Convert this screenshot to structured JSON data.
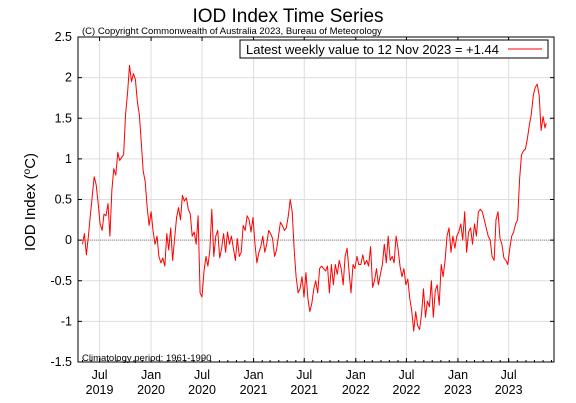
{
  "title": "IOD Index Time Series",
  "copyright": "(C) Copyright Commonwealth of Australia 2023, Bureau of Meteorology",
  "chart_data": {
    "type": "line",
    "title": "IOD Index Time Series",
    "ylabel": "IOD Index (",
    "ylabel_unit": "o",
    "ylabel_tail": "C)",
    "xlabel": "",
    "ylim": [
      -1.5,
      2.5
    ],
    "xlim": [
      "2019-04-15",
      "2023-12-10"
    ],
    "grid": true,
    "zero_line": true,
    "line_color": "#ff0000",
    "grid_color": "#dddddd",
    "legend_position": "top-right",
    "legend_label": "Latest weekly value to 12 Nov 2023 = +1.44",
    "note": "Climatology period: 1961-1990",
    "yticks": [
      -1.5,
      -1,
      -0.5,
      0,
      0.5,
      1,
      1.5,
      2,
      2.5
    ],
    "ytick_labels": [
      "-1.5",
      "-1",
      "-0.5",
      "0",
      "0.5",
      "1",
      "1.5",
      "2",
      "2.5"
    ],
    "xticks": [
      {
        "date": "2019-07-01",
        "line1": "Jul",
        "line2": "2019"
      },
      {
        "date": "2020-01-01",
        "line1": "Jan",
        "line2": "2020"
      },
      {
        "date": "2020-07-01",
        "line1": "Jul",
        "line2": "2020"
      },
      {
        "date": "2021-01-01",
        "line1": "Jan",
        "line2": "2021"
      },
      {
        "date": "2021-07-01",
        "line1": "Jul",
        "line2": "2021"
      },
      {
        "date": "2022-01-01",
        "line1": "Jan",
        "line2": "2022"
      },
      {
        "date": "2022-07-01",
        "line1": "Jul",
        "line2": "2022"
      },
      {
        "date": "2023-01-01",
        "line1": "Jan",
        "line2": "2023"
      },
      {
        "date": "2023-07-01",
        "line1": "Jul",
        "line2": "2023"
      }
    ],
    "series": [
      {
        "points": [
          [
            "2019-05-01",
            -0.05
          ],
          [
            "2019-05-08",
            0.08
          ],
          [
            "2019-05-15",
            -0.18
          ],
          [
            "2019-05-22",
            0.05
          ],
          [
            "2019-05-29",
            0.3
          ],
          [
            "2019-06-05",
            0.55
          ],
          [
            "2019-06-12",
            0.78
          ],
          [
            "2019-06-19",
            0.68
          ],
          [
            "2019-06-26",
            0.45
          ],
          [
            "2019-07-03",
            0.2
          ],
          [
            "2019-07-10",
            0.12
          ],
          [
            "2019-07-17",
            0.32
          ],
          [
            "2019-07-24",
            0.3
          ],
          [
            "2019-07-31",
            0.45
          ],
          [
            "2019-08-07",
            0.05
          ],
          [
            "2019-08-14",
            0.62
          ],
          [
            "2019-08-21",
            0.88
          ],
          [
            "2019-08-28",
            0.8
          ],
          [
            "2019-09-04",
            1.08
          ],
          [
            "2019-09-11",
            0.98
          ],
          [
            "2019-09-18",
            1.02
          ],
          [
            "2019-09-25",
            1.05
          ],
          [
            "2019-10-02",
            1.55
          ],
          [
            "2019-10-09",
            1.82
          ],
          [
            "2019-10-16",
            2.15
          ],
          [
            "2019-10-23",
            1.95
          ],
          [
            "2019-10-30",
            2.05
          ],
          [
            "2019-11-06",
            1.98
          ],
          [
            "2019-11-13",
            1.7
          ],
          [
            "2019-11-20",
            1.55
          ],
          [
            "2019-11-27",
            1.2
          ],
          [
            "2019-12-04",
            0.85
          ],
          [
            "2019-12-11",
            0.72
          ],
          [
            "2019-12-18",
            0.4
          ],
          [
            "2019-12-25",
            0.18
          ],
          [
            "2020-01-01",
            0.35
          ],
          [
            "2020-01-08",
            0.12
          ],
          [
            "2020-01-15",
            -0.05
          ],
          [
            "2020-01-22",
            0.05
          ],
          [
            "2020-01-29",
            -0.2
          ],
          [
            "2020-02-05",
            -0.28
          ],
          [
            "2020-02-12",
            -0.22
          ],
          [
            "2020-02-19",
            -0.32
          ],
          [
            "2020-02-26",
            0.08
          ],
          [
            "2020-03-04",
            -0.12
          ],
          [
            "2020-03-11",
            0.15
          ],
          [
            "2020-03-18",
            -0.25
          ],
          [
            "2020-03-25",
            0.02
          ],
          [
            "2020-04-01",
            0.28
          ],
          [
            "2020-04-08",
            0.4
          ],
          [
            "2020-04-15",
            0.25
          ],
          [
            "2020-04-22",
            0.55
          ],
          [
            "2020-04-29",
            0.48
          ],
          [
            "2020-05-06",
            0.52
          ],
          [
            "2020-05-13",
            0.38
          ],
          [
            "2020-05-20",
            0.32
          ],
          [
            "2020-05-27",
            0.05
          ],
          [
            "2020-06-03",
            0.1
          ],
          [
            "2020-06-10",
            -0.05
          ],
          [
            "2020-06-17",
            0.3
          ],
          [
            "2020-06-24",
            -0.65
          ],
          [
            "2020-07-01",
            -0.7
          ],
          [
            "2020-07-08",
            -0.38
          ],
          [
            "2020-07-15",
            -0.2
          ],
          [
            "2020-07-22",
            -0.32
          ],
          [
            "2020-07-29",
            -0.12
          ],
          [
            "2020-08-05",
            0.38
          ],
          [
            "2020-08-12",
            -0.2
          ],
          [
            "2020-08-19",
            0.05
          ],
          [
            "2020-08-26",
            0.12
          ],
          [
            "2020-09-02",
            -0.22
          ],
          [
            "2020-09-09",
            -0.1
          ],
          [
            "2020-09-16",
            0.08
          ],
          [
            "2020-09-23",
            -0.15
          ],
          [
            "2020-09-30",
            0.1
          ],
          [
            "2020-10-07",
            -0.05
          ],
          [
            "2020-10-14",
            0.05
          ],
          [
            "2020-10-21",
            -0.1
          ],
          [
            "2020-10-28",
            -0.25
          ],
          [
            "2020-11-04",
            0.02
          ],
          [
            "2020-11-11",
            -0.2
          ],
          [
            "2020-11-18",
            -0.15
          ],
          [
            "2020-11-25",
            0.18
          ],
          [
            "2020-12-02",
            0.12
          ],
          [
            "2020-12-09",
            0.3
          ],
          [
            "2020-12-16",
            0.25
          ],
          [
            "2020-12-23",
            0.1
          ],
          [
            "2020-12-30",
            0.28
          ],
          [
            "2021-01-06",
            -0.05
          ],
          [
            "2021-01-13",
            -0.28
          ],
          [
            "2021-01-20",
            -0.15
          ],
          [
            "2021-01-27",
            -0.08
          ],
          [
            "2021-02-03",
            0.05
          ],
          [
            "2021-02-10",
            -0.15
          ],
          [
            "2021-02-17",
            -0.05
          ],
          [
            "2021-02-24",
            0.12
          ],
          [
            "2021-03-03",
            0.08
          ],
          [
            "2021-03-10",
            0.02
          ],
          [
            "2021-03-17",
            -0.2
          ],
          [
            "2021-03-24",
            -0.12
          ],
          [
            "2021-03-31",
            0.05
          ],
          [
            "2021-04-07",
            0.22
          ],
          [
            "2021-04-14",
            0.18
          ],
          [
            "2021-04-21",
            0.12
          ],
          [
            "2021-04-28",
            0.15
          ],
          [
            "2021-05-05",
            0.3
          ],
          [
            "2021-05-12",
            0.5
          ],
          [
            "2021-05-19",
            0.35
          ],
          [
            "2021-05-26",
            -0.12
          ],
          [
            "2021-06-02",
            -0.45
          ],
          [
            "2021-06-09",
            -0.65
          ],
          [
            "2021-06-16",
            -0.6
          ],
          [
            "2021-06-23",
            -0.45
          ],
          [
            "2021-06-30",
            -0.7
          ],
          [
            "2021-07-07",
            -0.4
          ],
          [
            "2021-07-14",
            -0.72
          ],
          [
            "2021-07-21",
            -0.88
          ],
          [
            "2021-07-28",
            -0.78
          ],
          [
            "2021-08-04",
            -0.6
          ],
          [
            "2021-08-11",
            -0.5
          ],
          [
            "2021-08-18",
            -0.65
          ],
          [
            "2021-08-25",
            -0.35
          ],
          [
            "2021-09-01",
            -0.32
          ],
          [
            "2021-09-08",
            -0.35
          ],
          [
            "2021-09-15",
            -0.38
          ],
          [
            "2021-09-22",
            -0.32
          ],
          [
            "2021-09-29",
            -0.65
          ],
          [
            "2021-10-06",
            -0.3
          ],
          [
            "2021-10-13",
            -0.55
          ],
          [
            "2021-10-20",
            -0.3
          ],
          [
            "2021-10-27",
            -0.42
          ],
          [
            "2021-11-03",
            -0.25
          ],
          [
            "2021-11-10",
            -0.35
          ],
          [
            "2021-11-17",
            -0.55
          ],
          [
            "2021-11-24",
            -0.2
          ],
          [
            "2021-12-01",
            -0.1
          ],
          [
            "2021-12-08",
            -0.38
          ],
          [
            "2021-12-15",
            -0.65
          ],
          [
            "2021-12-22",
            -0.3
          ],
          [
            "2021-12-29",
            -0.35
          ],
          [
            "2022-01-05",
            -0.2
          ],
          [
            "2022-01-12",
            -0.3
          ],
          [
            "2022-01-19",
            -0.3
          ],
          [
            "2022-01-26",
            -0.18
          ],
          [
            "2022-02-02",
            -0.3
          ],
          [
            "2022-02-09",
            -0.25
          ],
          [
            "2022-02-16",
            -0.32
          ],
          [
            "2022-02-23",
            -0.08
          ],
          [
            "2022-03-02",
            -0.58
          ],
          [
            "2022-03-09",
            -0.5
          ],
          [
            "2022-03-16",
            -0.35
          ],
          [
            "2022-03-23",
            -0.55
          ],
          [
            "2022-03-30",
            -0.42
          ],
          [
            "2022-04-06",
            -0.3
          ],
          [
            "2022-04-13",
            -0.05
          ],
          [
            "2022-04-20",
            -0.28
          ],
          [
            "2022-04-27",
            0.05
          ],
          [
            "2022-05-04",
            -0.25
          ],
          [
            "2022-05-11",
            -0.2
          ],
          [
            "2022-05-18",
            -0.28
          ],
          [
            "2022-05-25",
            0.05
          ],
          [
            "2022-06-01",
            -0.1
          ],
          [
            "2022-06-08",
            -0.32
          ],
          [
            "2022-06-15",
            -0.45
          ],
          [
            "2022-06-22",
            -0.35
          ],
          [
            "2022-06-29",
            -0.55
          ],
          [
            "2022-07-06",
            -0.48
          ],
          [
            "2022-07-13",
            -0.72
          ],
          [
            "2022-07-20",
            -0.88
          ],
          [
            "2022-07-27",
            -1.12
          ],
          [
            "2022-08-03",
            -0.88
          ],
          [
            "2022-08-10",
            -1.05
          ],
          [
            "2022-08-17",
            -1.1
          ],
          [
            "2022-08-24",
            -0.9
          ],
          [
            "2022-08-31",
            -0.6
          ],
          [
            "2022-09-07",
            -0.95
          ],
          [
            "2022-09-14",
            -0.75
          ],
          [
            "2022-09-21",
            -0.82
          ],
          [
            "2022-09-28",
            -0.5
          ],
          [
            "2022-10-05",
            -0.95
          ],
          [
            "2022-10-12",
            -0.62
          ],
          [
            "2022-10-19",
            -0.55
          ],
          [
            "2022-10-26",
            -0.8
          ],
          [
            "2022-11-02",
            -0.3
          ],
          [
            "2022-11-09",
            -0.45
          ],
          [
            "2022-11-16",
            -0.25
          ],
          [
            "2022-11-23",
            0.05
          ],
          [
            "2022-11-30",
            0.15
          ],
          [
            "2022-12-07",
            -0.15
          ],
          [
            "2022-12-14",
            0.05
          ],
          [
            "2022-12-21",
            -0.1
          ],
          [
            "2022-12-28",
            0.05
          ],
          [
            "2023-01-04",
            0.1
          ],
          [
            "2023-01-11",
            0.2
          ],
          [
            "2023-01-18",
            0.0
          ],
          [
            "2023-01-25",
            0.35
          ],
          [
            "2023-02-01",
            -0.15
          ],
          [
            "2023-02-08",
            0.1
          ],
          [
            "2023-02-15",
            0.15
          ],
          [
            "2023-02-22",
            -0.05
          ],
          [
            "2023-03-01",
            0.2
          ],
          [
            "2023-03-08",
            0.05
          ],
          [
            "2023-03-15",
            0.35
          ],
          [
            "2023-03-22",
            0.38
          ],
          [
            "2023-03-29",
            0.35
          ],
          [
            "2023-04-05",
            0.25
          ],
          [
            "2023-04-12",
            0.15
          ],
          [
            "2023-04-19",
            0.05
          ],
          [
            "2023-04-26",
            0.0
          ],
          [
            "2023-05-03",
            -0.2
          ],
          [
            "2023-05-10",
            -0.25
          ],
          [
            "2023-05-17",
            0.25
          ],
          [
            "2023-05-24",
            0.35
          ],
          [
            "2023-05-31",
            0.02
          ],
          [
            "2023-06-07",
            -0.05
          ],
          [
            "2023-06-14",
            -0.22
          ],
          [
            "2023-06-21",
            -0.25
          ],
          [
            "2023-06-28",
            -0.3
          ],
          [
            "2023-07-05",
            -0.1
          ],
          [
            "2023-07-12",
            0.05
          ],
          [
            "2023-07-19",
            0.1
          ],
          [
            "2023-07-26",
            0.2
          ],
          [
            "2023-08-02",
            0.25
          ],
          [
            "2023-08-09",
            0.75
          ],
          [
            "2023-08-16",
            1.05
          ],
          [
            "2023-08-23",
            1.1
          ],
          [
            "2023-08-30",
            1.12
          ],
          [
            "2023-09-06",
            1.25
          ],
          [
            "2023-09-13",
            1.42
          ],
          [
            "2023-09-20",
            1.55
          ],
          [
            "2023-09-27",
            1.78
          ],
          [
            "2023-10-04",
            1.88
          ],
          [
            "2023-10-11",
            1.92
          ],
          [
            "2023-10-18",
            1.78
          ],
          [
            "2023-10-25",
            1.35
          ],
          [
            "2023-11-01",
            1.52
          ],
          [
            "2023-11-08",
            1.38
          ],
          [
            "2023-11-12",
            1.44
          ]
        ]
      }
    ]
  }
}
